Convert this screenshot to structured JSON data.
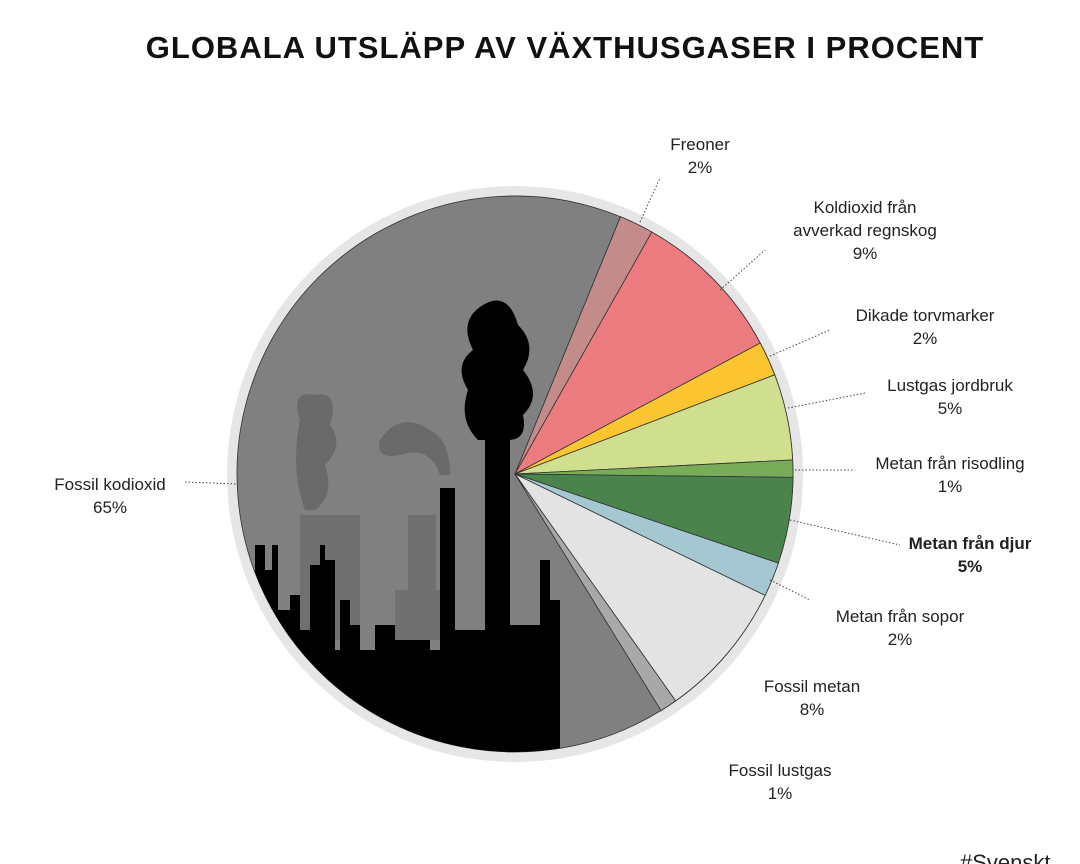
{
  "chart_data": {
    "type": "pie",
    "title": "GLOBALA UTSLÄPP AV VÄXTHUSGASER I PROCENT",
    "categories": [
      "Freoner",
      "Koldioxid från avverkad regnskog",
      "Dikade torvmarker",
      "Lustgas jordbruk",
      "Metan från risodling",
      "Metan från djur",
      "Metan från sopor",
      "Fossil metan",
      "Fossil lustgas",
      "Fossil kodioxid"
    ],
    "values": [
      2,
      9,
      2,
      5,
      1,
      5,
      2,
      8,
      1,
      65
    ],
    "value_labels": [
      "2%",
      "9%",
      "2%",
      "5%",
      "1%",
      "5%",
      "2%",
      "8%",
      "1%",
      "65%"
    ],
    "colors": [
      "#c48b8b",
      "#ec7c80",
      "#fbc531",
      "#cfdf8e",
      "#78ac58",
      "#4a834c",
      "#a5c7d1",
      "#e3e3e3",
      "#a8a8a8",
      "#808080"
    ],
    "footer": "#Svenskt"
  }
}
